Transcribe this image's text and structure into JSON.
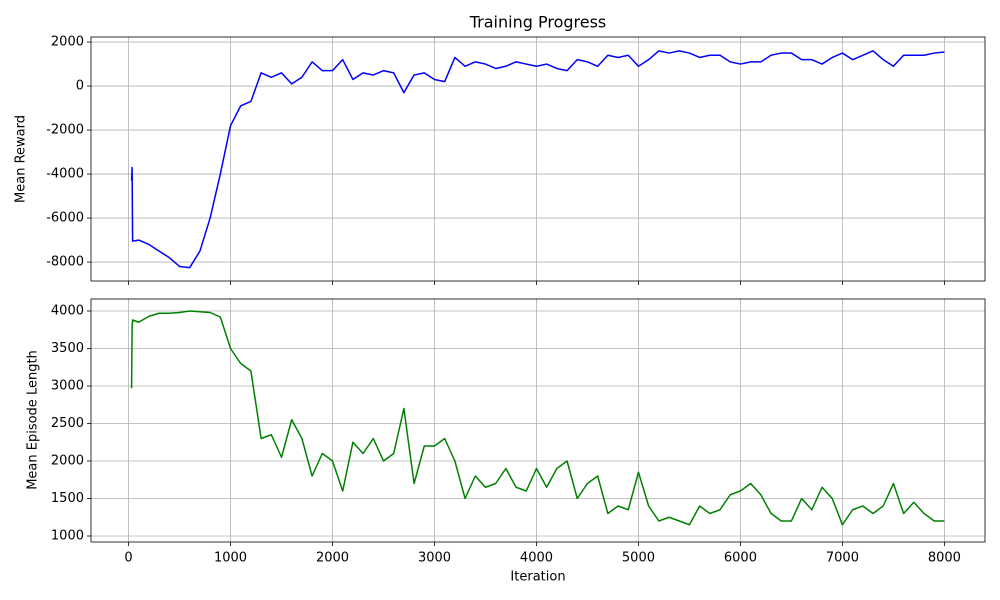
{
  "chart_data": [
    {
      "type": "line",
      "title": "Training Progress",
      "ylabel": "Mean Reward",
      "color": "#0000ff",
      "grid": true,
      "x": [
        30,
        35,
        40,
        100,
        200,
        300,
        400,
        500,
        600,
        700,
        800,
        900,
        1000,
        1100,
        1200,
        1300,
        1400,
        1500,
        1600,
        1700,
        1800,
        1900,
        2000,
        2100,
        2200,
        2300,
        2400,
        2500,
        2600,
        2700,
        2800,
        2900,
        3000,
        3100,
        3200,
        3300,
        3400,
        3500,
        3600,
        3700,
        3800,
        3900,
        4000,
        4100,
        4200,
        4300,
        4400,
        4500,
        4600,
        4700,
        4800,
        4900,
        5000,
        5100,
        5200,
        5300,
        5400,
        5500,
        5600,
        5700,
        5800,
        5900,
        6000,
        6100,
        6200,
        6300,
        6400,
        6500,
        6600,
        6700,
        6800,
        6900,
        7000,
        7100,
        7200,
        7300,
        7400,
        7500,
        7600,
        7700,
        7800,
        7900,
        8000
      ],
      "values": [
        -4300,
        -3700,
        -7050,
        -7000,
        -7200,
        -7500,
        -7800,
        -8200,
        -8250,
        -7500,
        -6000,
        -4000,
        -1800,
        -900,
        -700,
        600,
        400,
        600,
        100,
        400,
        1100,
        700,
        700,
        1200,
        300,
        600,
        500,
        700,
        600,
        -300,
        500,
        600,
        300,
        200,
        1300,
        900,
        1100,
        1000,
        800,
        900,
        1100,
        1000,
        900,
        1000,
        800,
        700,
        1200,
        1100,
        900,
        1400,
        1300,
        1400,
        900,
        1200,
        1600,
        1500,
        1600,
        1500,
        1300,
        1400,
        1400,
        1100,
        1000,
        1100,
        1100,
        1400,
        1500,
        1500,
        1200,
        1200,
        1000,
        1300,
        1500,
        1200,
        1400,
        1600,
        1200,
        900,
        1400,
        1400,
        1400,
        1500,
        1550
      ],
      "xlim": [
        -368,
        8398
      ],
      "xticks": [
        0,
        1000,
        2000,
        3000,
        4000,
        5000,
        6000,
        7000,
        8000
      ],
      "ylim": [
        -8860,
        2230
      ],
      "yticks": [
        -8000,
        -6000,
        -4000,
        -2000,
        0,
        2000
      ]
    },
    {
      "type": "line",
      "ylabel": "Mean Episode Length",
      "xlabel": "Iteration",
      "color": "#008000",
      "grid": true,
      "x": [
        30,
        35,
        40,
        100,
        200,
        300,
        400,
        500,
        600,
        700,
        800,
        900,
        1000,
        1100,
        1200,
        1300,
        1400,
        1500,
        1600,
        1700,
        1800,
        1900,
        2000,
        2100,
        2200,
        2300,
        2400,
        2500,
        2600,
        2700,
        2800,
        2900,
        3000,
        3100,
        3200,
        3300,
        3400,
        3500,
        3600,
        3700,
        3800,
        3900,
        4000,
        4100,
        4200,
        4300,
        4400,
        4500,
        4600,
        4700,
        4800,
        4900,
        5000,
        5100,
        5200,
        5300,
        5400,
        5500,
        5600,
        5700,
        5800,
        5900,
        6000,
        6100,
        6200,
        6300,
        6400,
        6500,
        6600,
        6700,
        6800,
        6900,
        7000,
        7100,
        7200,
        7300,
        7400,
        7500,
        7600,
        7700,
        7800,
        7900,
        8000
      ],
      "values": [
        2970,
        3800,
        3880,
        3850,
        3930,
        3970,
        3970,
        3980,
        4000,
        3990,
        3980,
        3920,
        3500,
        3300,
        3200,
        2300,
        2350,
        2050,
        2550,
        2300,
        1800,
        2100,
        2000,
        1600,
        2250,
        2100,
        2300,
        2000,
        2100,
        2700,
        1700,
        2200,
        2200,
        2300,
        2000,
        1500,
        1800,
        1650,
        1700,
        1900,
        1650,
        1600,
        1900,
        1650,
        1900,
        2000,
        1500,
        1700,
        1800,
        1300,
        1400,
        1350,
        1850,
        1400,
        1200,
        1250,
        1200,
        1150,
        1400,
        1300,
        1350,
        1550,
        1600,
        1700,
        1550,
        1300,
        1200,
        1200,
        1500,
        1350,
        1650,
        1500,
        1150,
        1350,
        1400,
        1300,
        1400,
        1700,
        1300,
        1450,
        1300,
        1200,
        1200
      ],
      "xlim": [
        -368,
        8398
      ],
      "xticks": [
        0,
        1000,
        2000,
        3000,
        4000,
        5000,
        6000,
        7000,
        8000
      ],
      "ylim": [
        920,
        4160
      ],
      "yticks": [
        1000,
        1500,
        2000,
        2500,
        3000,
        3500,
        4000
      ]
    }
  ]
}
